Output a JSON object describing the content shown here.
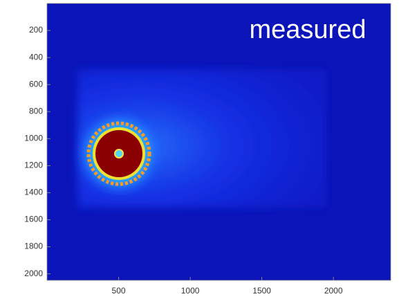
{
  "chart_data": {
    "type": "image",
    "title": "measured",
    "xlim": [
      0,
      2400
    ],
    "ylim": [
      0,
      2048
    ],
    "y_reversed": true,
    "xticks": [
      500,
      1000,
      1500,
      2000
    ],
    "yticks": [
      200,
      400,
      600,
      800,
      1000,
      1200,
      1400,
      1600,
      1800,
      2000
    ]
  }
}
